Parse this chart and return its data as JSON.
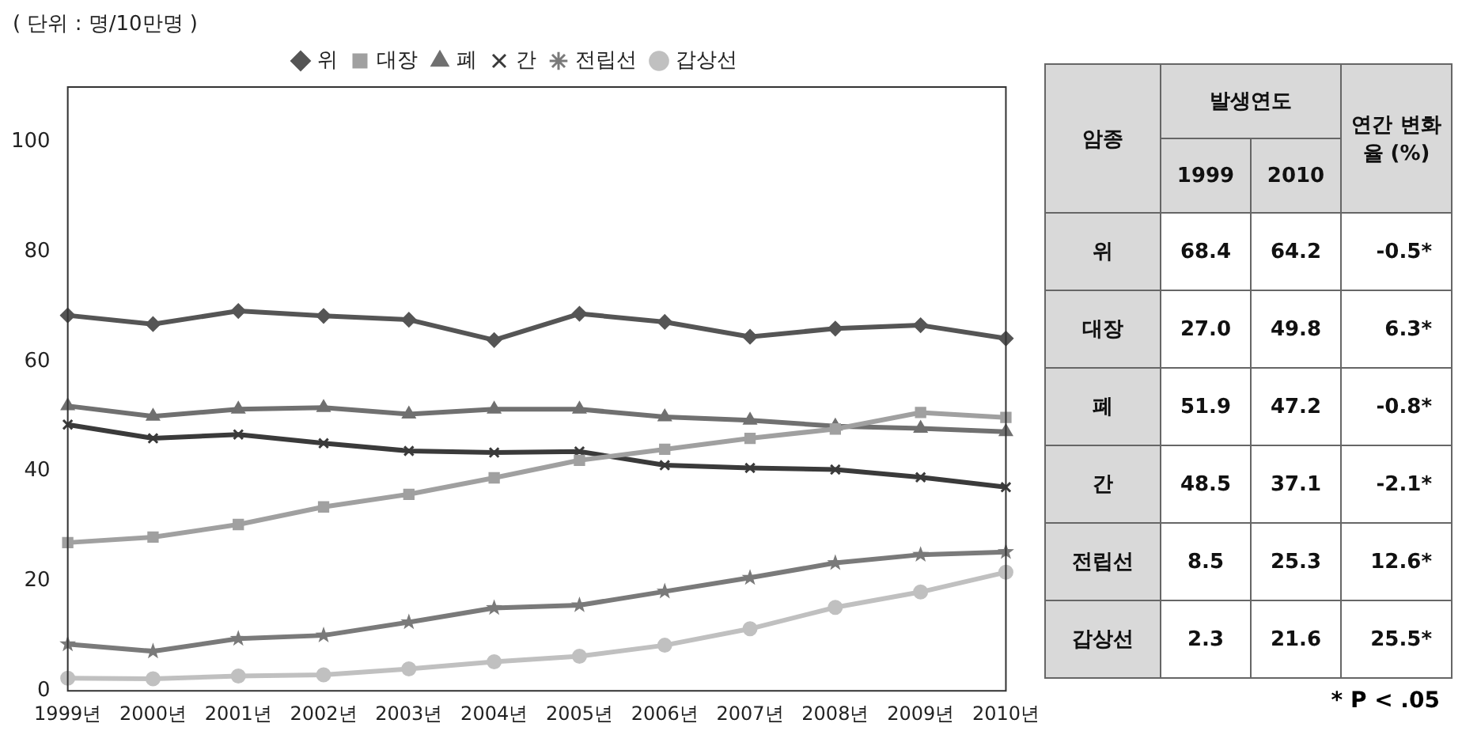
{
  "chart_data": [
    {
      "type": "line",
      "title": "( 단위 : 명/10만명 )",
      "categories": [
        "1999년",
        "2000년",
        "2001년",
        "2002년",
        "2003년",
        "2004년",
        "2005년",
        "2006년",
        "2007년",
        "2008년",
        "2009년",
        "2010년"
      ],
      "series": [
        {
          "name": "위",
          "color": "#555555",
          "marker": "diamond",
          "values": [
            68.4,
            66.8,
            69.2,
            68.3,
            67.6,
            63.9,
            68.7,
            67.2,
            64.5,
            66.0,
            66.6,
            64.2
          ]
        },
        {
          "name": "대장",
          "color": "#a0a0a0",
          "marker": "square",
          "values": [
            27.0,
            28.0,
            30.3,
            33.5,
            35.8,
            38.8,
            42.0,
            44.0,
            46.0,
            47.7,
            50.7,
            49.8
          ]
        },
        {
          "name": "폐",
          "color": "#707070",
          "marker": "triangle",
          "values": [
            51.9,
            50.0,
            51.3,
            51.6,
            50.4,
            51.3,
            51.3,
            49.9,
            49.3,
            48.2,
            47.8,
            47.2
          ]
        },
        {
          "name": "간",
          "color": "#3a3a3a",
          "marker": "cross",
          "values": [
            48.5,
            46.0,
            46.7,
            45.1,
            43.7,
            43.4,
            43.6,
            41.1,
            40.6,
            40.3,
            38.9,
            37.1
          ]
        },
        {
          "name": "전립선",
          "color": "#7a7a7a",
          "marker": "star",
          "values": [
            8.5,
            7.2,
            9.5,
            10.1,
            12.5,
            15.1,
            15.6,
            18.1,
            20.6,
            23.3,
            24.8,
            25.3
          ]
        },
        {
          "name": "갑상선",
          "color": "#c0c0c0",
          "marker": "circle",
          "values": [
            2.3,
            2.2,
            2.7,
            2.9,
            4.0,
            5.3,
            6.3,
            8.3,
            11.3,
            15.2,
            18.0,
            21.6
          ]
        }
      ],
      "ylim": [
        0,
        110
      ],
      "yticks": [
        0,
        20,
        40,
        60,
        80,
        100
      ],
      "grid": false,
      "legend": "top"
    },
    {
      "type": "other",
      "annotations": [
        "암종",
        "발생연도",
        "* P < .05"
      ],
      "categories": [
        "1999",
        "2010",
        "연간 변화율 (%)"
      ],
      "y_categories": [
        "위",
        "대장",
        "폐",
        "간",
        "전립선",
        "갑상선"
      ],
      "cell_labels": [
        [
          "68.4",
          "64.2",
          "-0.5*"
        ],
        [
          "27.0",
          "49.8",
          "6.3*"
        ],
        [
          "51.9",
          "47.2",
          "-0.8*"
        ],
        [
          "48.5",
          "37.1",
          "-2.1*"
        ],
        [
          "8.5",
          "25.3",
          "12.6*"
        ],
        [
          "2.3",
          "21.6",
          "25.5*"
        ]
      ]
    }
  ]
}
